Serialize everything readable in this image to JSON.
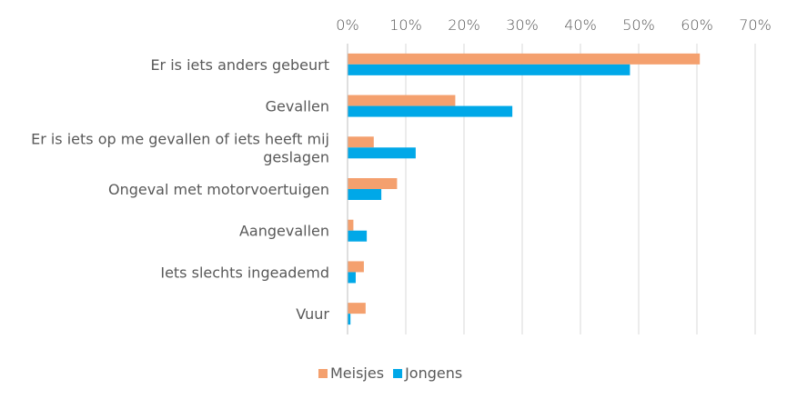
{
  "chart_data": {
    "type": "bar",
    "orientation": "horizontal",
    "axis_position": "top",
    "grid": true,
    "legend_position": "bottom",
    "xlim": [
      0,
      70
    ],
    "ticks": [
      0,
      10,
      20,
      30,
      40,
      50,
      60,
      70
    ],
    "tick_labels": [
      "0%",
      "10%",
      "20%",
      "30%",
      "40%",
      "50%",
      "60%",
      "70%"
    ],
    "categories": [
      [
        "Er is iets anders gebeurt"
      ],
      [
        "Gevallen"
      ],
      [
        "Er is iets op me gevallen of iets heeft mij",
        "geslagen"
      ],
      [
        "Ongeval met motorvoertuigen"
      ],
      [
        "Aangevallen"
      ],
      [
        "Iets slechts ingeademd"
      ],
      [
        "Vuur"
      ]
    ],
    "series": [
      {
        "name": "Meisjes",
        "color": "#F4A06E",
        "values": [
          60.5,
          18.5,
          4.5,
          8.5,
          1.0,
          2.8,
          3.1
        ]
      },
      {
        "name": "Jongens",
        "color": "#00A8E8",
        "values": [
          48.5,
          28.3,
          11.7,
          5.8,
          3.3,
          1.4,
          0.5
        ]
      }
    ]
  }
}
